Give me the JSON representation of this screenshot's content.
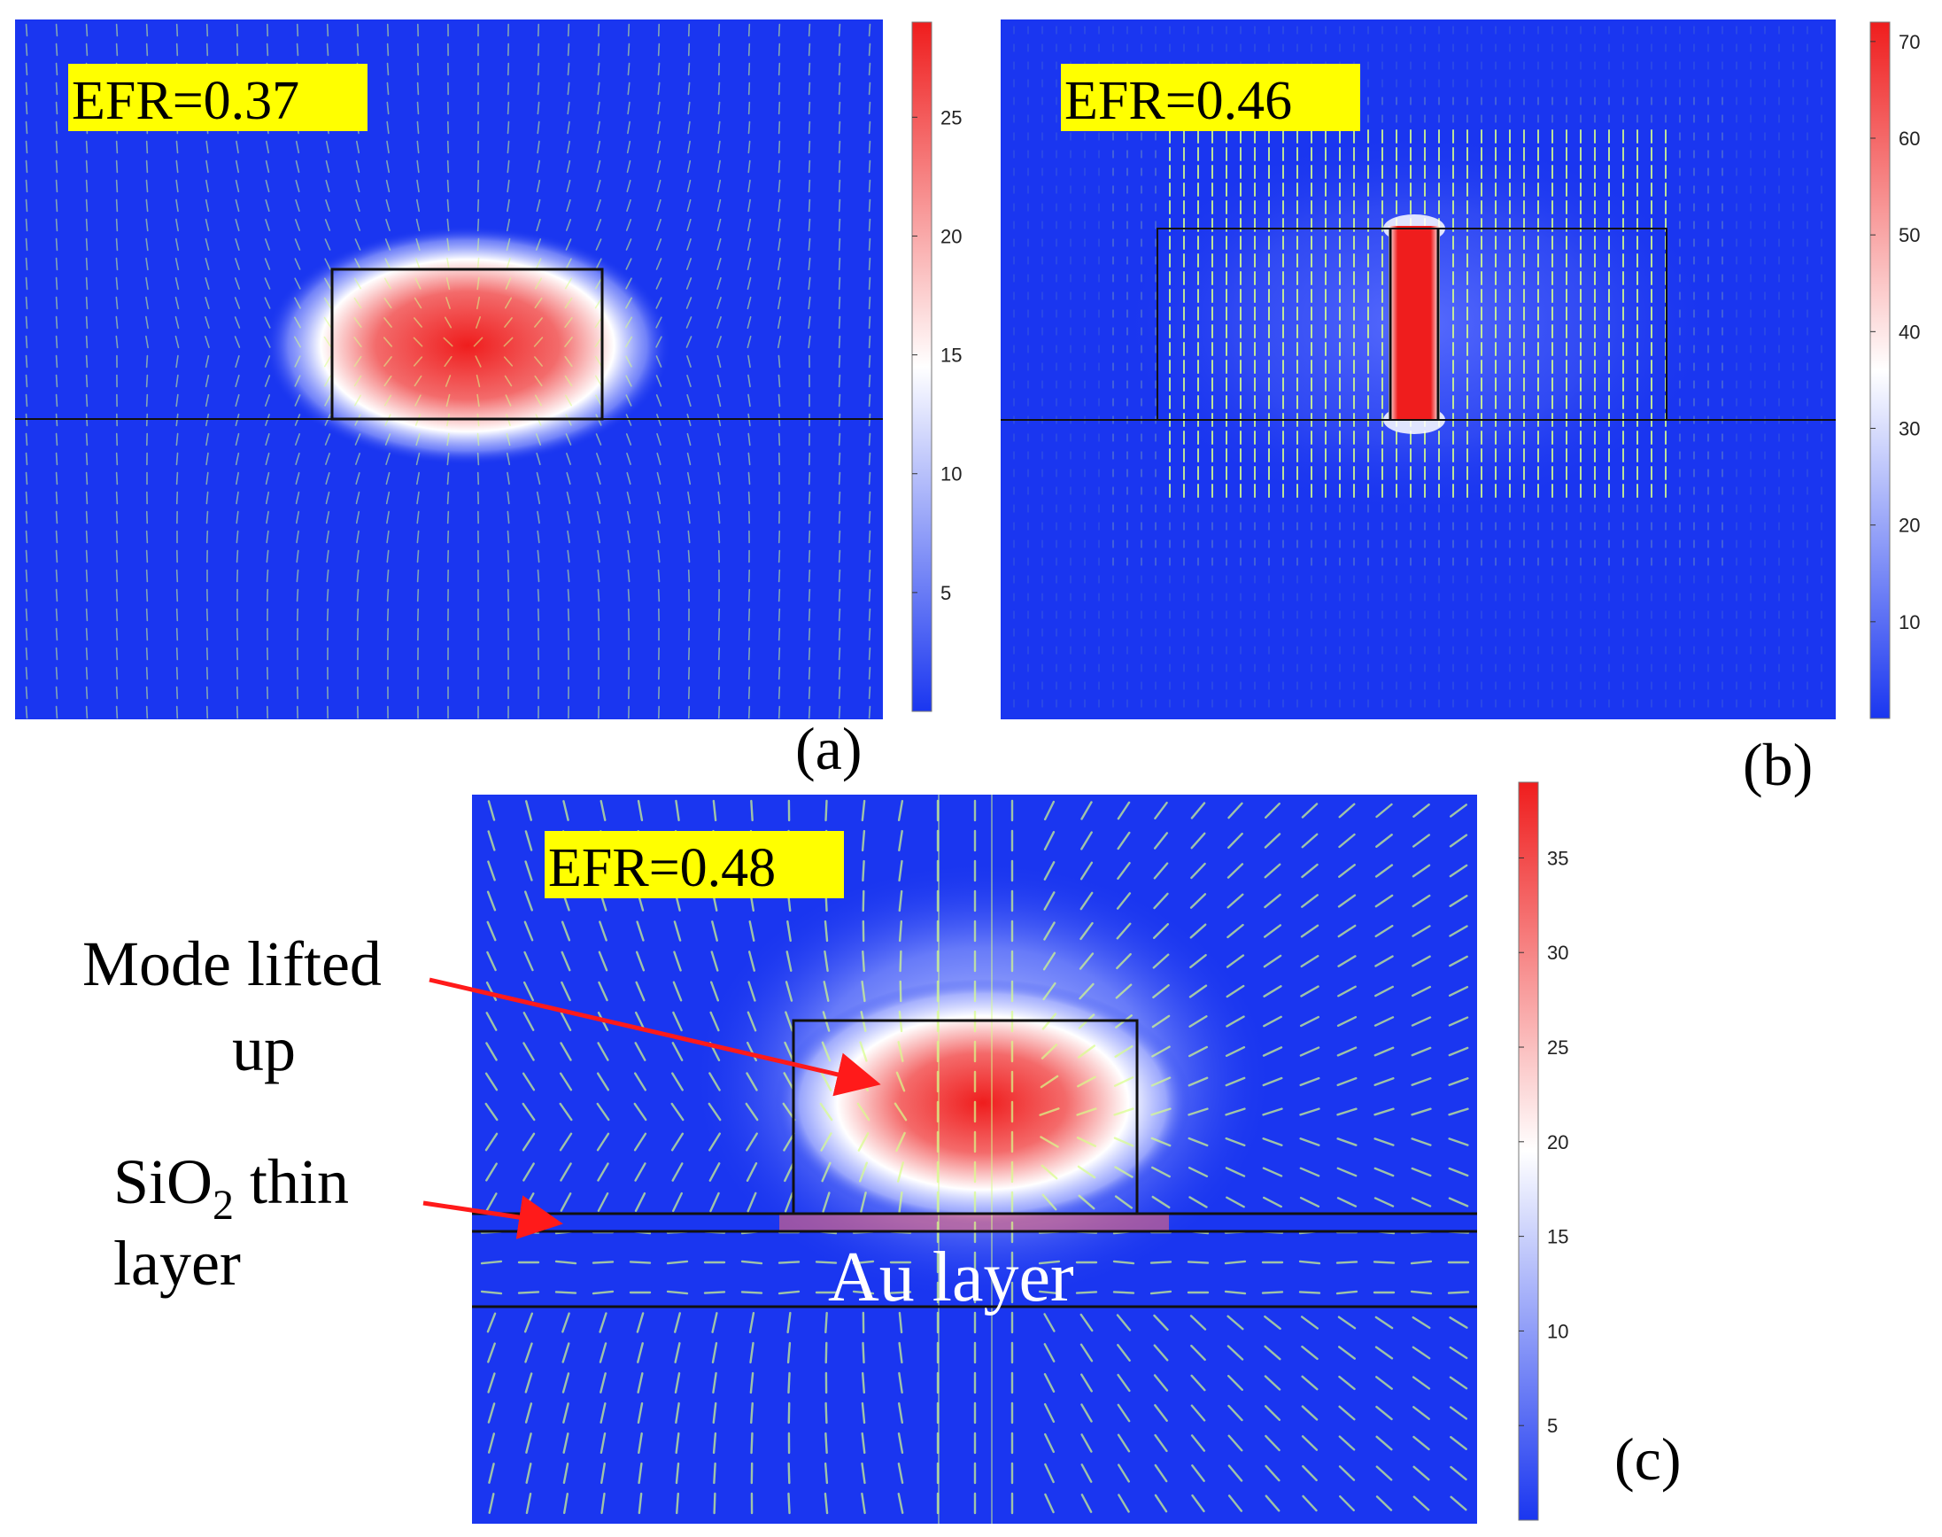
{
  "panels": [
    {
      "id": "a",
      "label": "(a)",
      "efr_text": "EFR=0.37",
      "colorbar_ticks": [
        {
          "label": "5",
          "value": 5
        },
        {
          "label": "10",
          "value": 10
        },
        {
          "label": "15",
          "value": 15
        },
        {
          "label": "20",
          "value": 20
        },
        {
          "label": "25",
          "value": 25
        }
      ],
      "colorbar_range": [
        0,
        29
      ]
    },
    {
      "id": "b",
      "label": "(b)",
      "efr_text": "EFR=0.46",
      "colorbar_ticks": [
        {
          "label": "10",
          "value": 10
        },
        {
          "label": "20",
          "value": 20
        },
        {
          "label": "30",
          "value": 30
        },
        {
          "label": "40",
          "value": 40
        },
        {
          "label": "50",
          "value": 50
        },
        {
          "label": "60",
          "value": 60
        },
        {
          "label": "70",
          "value": 70
        }
      ],
      "colorbar_range": [
        0,
        72
      ]
    },
    {
      "id": "c",
      "label": "(c)",
      "efr_text": "EFR=0.48",
      "colorbar_ticks": [
        {
          "label": "5",
          "value": 5
        },
        {
          "label": "10",
          "value": 10
        },
        {
          "label": "15",
          "value": 15
        },
        {
          "label": "20",
          "value": 20
        },
        {
          "label": "25",
          "value": 25
        },
        {
          "label": "30",
          "value": 30
        },
        {
          "label": "35",
          "value": 35
        }
      ],
      "colorbar_range": [
        0,
        39
      ],
      "annotations": {
        "mode_lifted_line1": "Mode lifted",
        "mode_lifted_line2": "up",
        "sio2_prefix": "SiO",
        "sio2_subscript": "2",
        "sio2_suffix": " thin",
        "sio2_line2": "layer",
        "au_layer": "Au layer"
      }
    }
  ],
  "colors": {
    "field_low": "#1a36f0",
    "field_mid": "#ffffff",
    "field_high": "#ef1d1d",
    "efr_highlight": "#ffff00",
    "arrow": "#ff1a1a",
    "vector_color": "#d8ff8a"
  }
}
